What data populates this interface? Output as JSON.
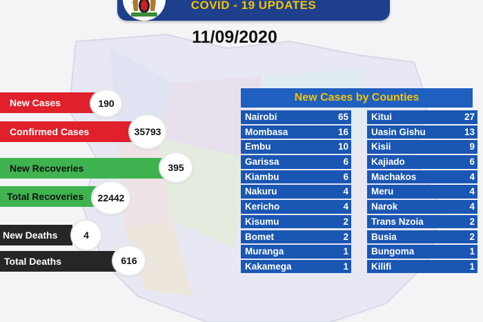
{
  "header": {
    "title": "COVID - 19 UPDATES",
    "date": "11/09/2020"
  },
  "stats": [
    {
      "label": "New Cases",
      "value": "190",
      "color": "#e0202a"
    },
    {
      "label": "Confirmed Cases",
      "value": "35793",
      "color": "#e0202a"
    },
    {
      "label": "New Recoveries",
      "value": "395",
      "color": "#3fb34f"
    },
    {
      "label": "Total Recoveries",
      "value": "22442",
      "color": "#3fb34f"
    },
    {
      "label": "New Deaths",
      "value": "4",
      "color": "#262626"
    },
    {
      "label": "Total Deaths",
      "value": "616",
      "color": "#262626"
    }
  ],
  "counties": {
    "title": "New Cases by Counties",
    "left": [
      {
        "name": "Nairobi",
        "cases": "65"
      },
      {
        "name": "Mombasa",
        "cases": "16"
      },
      {
        "name": "Embu",
        "cases": "10"
      },
      {
        "name": "Garissa",
        "cases": "6"
      },
      {
        "name": "Kiambu",
        "cases": "6"
      },
      {
        "name": "Nakuru",
        "cases": "4"
      },
      {
        "name": "Kericho",
        "cases": "4"
      },
      {
        "name": "Kisumu",
        "cases": "2"
      },
      {
        "name": "Bomet",
        "cases": "2"
      },
      {
        "name": "Muranga",
        "cases": "1"
      },
      {
        "name": "Kakamega",
        "cases": "1"
      }
    ],
    "right": [
      {
        "name": "Kitui",
        "cases": "27"
      },
      {
        "name": "Uasin Gishu",
        "cases": "13"
      },
      {
        "name": "Kisii",
        "cases": "9"
      },
      {
        "name": "Kajiado",
        "cases": "6"
      },
      {
        "name": "Machakos",
        "cases": "4"
      },
      {
        "name": "Meru",
        "cases": "4"
      },
      {
        "name": "Narok",
        "cases": "4"
      },
      {
        "name": "Trans Nzoia",
        "cases": "2"
      },
      {
        "name": "Busia",
        "cases": "2"
      },
      {
        "name": "Bungoma",
        "cases": "1"
      },
      {
        "name": "Kilifi",
        "cases": "1"
      }
    ]
  }
}
